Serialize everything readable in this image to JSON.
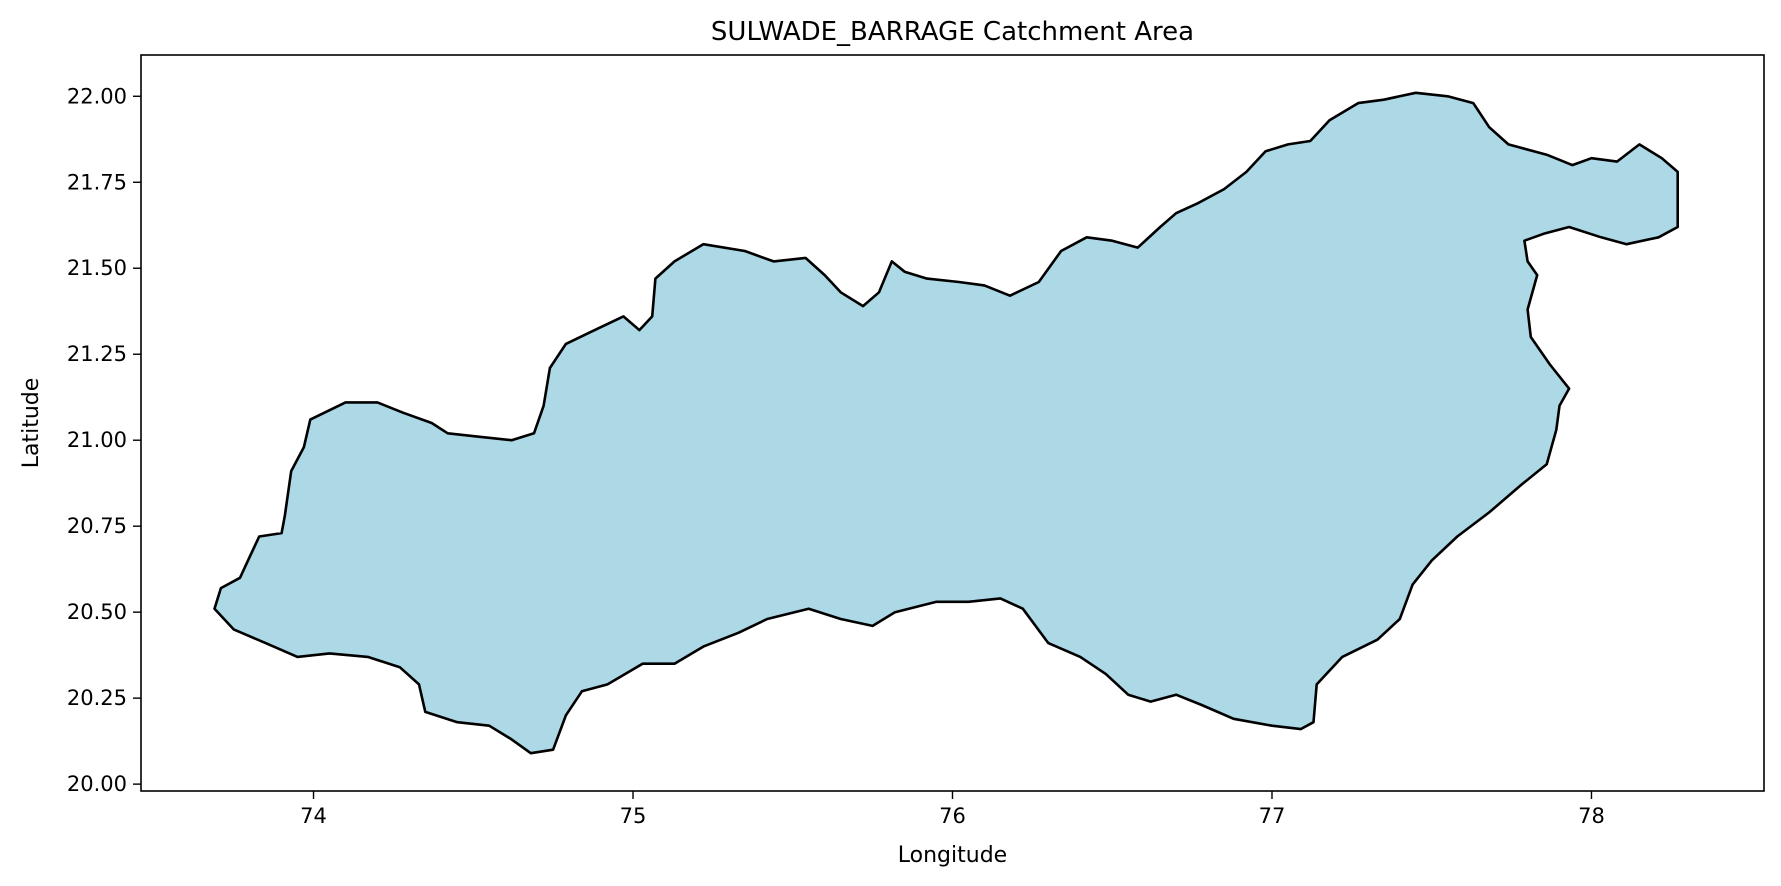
{
  "title": "SULWADE_BARRAGE Catchment Area",
  "xlabel": "Longitude",
  "ylabel": "Latitude",
  "map": {
    "xlim": [
      73.46,
      78.54
    ],
    "ylim": [
      19.98,
      22.12
    ],
    "x_ticks": [
      74,
      75,
      76,
      77,
      78
    ],
    "x_tick_labels": [
      "74",
      "75",
      "76",
      "77",
      "78"
    ],
    "y_ticks": [
      20.0,
      20.25,
      20.5,
      20.75,
      21.0,
      21.25,
      21.5,
      21.75,
      22.0
    ],
    "y_tick_labels": [
      "20.00",
      "20.25",
      "20.50",
      "20.75",
      "21.00",
      "21.25",
      "21.50",
      "21.75",
      "22.00"
    ],
    "fill_color": "#add8e6",
    "edge_color": "#000000",
    "boundary": [
      [
        73.69,
        20.51
      ],
      [
        73.75,
        20.45
      ],
      [
        73.85,
        20.41
      ],
      [
        73.95,
        20.37
      ],
      [
        74.05,
        20.38
      ],
      [
        74.17,
        20.37
      ],
      [
        74.27,
        20.34
      ],
      [
        74.33,
        20.29
      ],
      [
        74.35,
        20.21
      ],
      [
        74.45,
        20.18
      ],
      [
        74.55,
        20.17
      ],
      [
        74.62,
        20.13
      ],
      [
        74.68,
        20.09
      ],
      [
        74.75,
        20.1
      ],
      [
        74.79,
        20.2
      ],
      [
        74.84,
        20.27
      ],
      [
        74.92,
        20.29
      ],
      [
        75.03,
        20.35
      ],
      [
        75.13,
        20.35
      ],
      [
        75.22,
        20.4
      ],
      [
        75.33,
        20.44
      ],
      [
        75.42,
        20.48
      ],
      [
        75.55,
        20.51
      ],
      [
        75.65,
        20.48
      ],
      [
        75.75,
        20.46
      ],
      [
        75.82,
        20.5
      ],
      [
        75.95,
        20.53
      ],
      [
        76.05,
        20.53
      ],
      [
        76.15,
        20.54
      ],
      [
        76.22,
        20.51
      ],
      [
        76.3,
        20.41
      ],
      [
        76.4,
        20.37
      ],
      [
        76.48,
        20.32
      ],
      [
        76.55,
        20.26
      ],
      [
        76.62,
        20.24
      ],
      [
        76.7,
        20.26
      ],
      [
        76.78,
        20.23
      ],
      [
        76.88,
        20.19
      ],
      [
        77.0,
        20.17
      ],
      [
        77.09,
        20.16
      ],
      [
        77.13,
        20.18
      ],
      [
        77.14,
        20.29
      ],
      [
        77.22,
        20.37
      ],
      [
        77.33,
        20.42
      ],
      [
        77.4,
        20.48
      ],
      [
        77.44,
        20.58
      ],
      [
        77.5,
        20.65
      ],
      [
        77.58,
        20.72
      ],
      [
        77.68,
        20.79
      ],
      [
        77.78,
        20.87
      ],
      [
        77.86,
        20.93
      ],
      [
        77.89,
        21.03
      ],
      [
        77.9,
        21.1
      ],
      [
        77.93,
        21.15
      ],
      [
        77.87,
        21.22
      ],
      [
        77.81,
        21.3
      ],
      [
        77.8,
        21.38
      ],
      [
        77.83,
        21.48
      ],
      [
        77.8,
        21.52
      ],
      [
        77.79,
        21.58
      ],
      [
        77.85,
        21.6
      ],
      [
        77.93,
        21.62
      ],
      [
        78.03,
        21.59
      ],
      [
        78.11,
        21.57
      ],
      [
        78.21,
        21.59
      ],
      [
        78.27,
        21.62
      ],
      [
        78.27,
        21.71
      ],
      [
        78.27,
        21.78
      ],
      [
        78.22,
        21.82
      ],
      [
        78.15,
        21.86
      ],
      [
        78.08,
        21.81
      ],
      [
        78.0,
        21.82
      ],
      [
        77.94,
        21.8
      ],
      [
        77.86,
        21.83
      ],
      [
        77.74,
        21.86
      ],
      [
        77.68,
        21.91
      ],
      [
        77.63,
        21.98
      ],
      [
        77.55,
        22.0
      ],
      [
        77.45,
        22.01
      ],
      [
        77.35,
        21.99
      ],
      [
        77.27,
        21.98
      ],
      [
        77.18,
        21.93
      ],
      [
        77.12,
        21.87
      ],
      [
        77.05,
        21.86
      ],
      [
        76.98,
        21.84
      ],
      [
        76.92,
        21.78
      ],
      [
        76.85,
        21.73
      ],
      [
        76.77,
        21.69
      ],
      [
        76.7,
        21.66
      ],
      [
        76.65,
        21.62
      ],
      [
        76.58,
        21.56
      ],
      [
        76.5,
        21.58
      ],
      [
        76.42,
        21.59
      ],
      [
        76.34,
        21.55
      ],
      [
        76.27,
        21.46
      ],
      [
        76.18,
        21.42
      ],
      [
        76.1,
        21.45
      ],
      [
        76.02,
        21.46
      ],
      [
        75.92,
        21.47
      ],
      [
        75.85,
        21.49
      ],
      [
        75.81,
        21.52
      ],
      [
        75.77,
        21.43
      ],
      [
        75.72,
        21.39
      ],
      [
        75.65,
        21.43
      ],
      [
        75.6,
        21.48
      ],
      [
        75.54,
        21.53
      ],
      [
        75.44,
        21.52
      ],
      [
        75.35,
        21.55
      ],
      [
        75.22,
        21.57
      ],
      [
        75.13,
        21.52
      ],
      [
        75.07,
        21.47
      ],
      [
        75.06,
        21.36
      ],
      [
        75.02,
        21.32
      ],
      [
        74.97,
        21.36
      ],
      [
        74.88,
        21.32
      ],
      [
        74.79,
        21.28
      ],
      [
        74.74,
        21.21
      ],
      [
        74.72,
        21.1
      ],
      [
        74.69,
        21.02
      ],
      [
        74.62,
        21.0
      ],
      [
        74.52,
        21.01
      ],
      [
        74.42,
        21.02
      ],
      [
        74.37,
        21.05
      ],
      [
        74.28,
        21.08
      ],
      [
        74.2,
        21.11
      ],
      [
        74.1,
        21.11
      ],
      [
        73.99,
        21.06
      ],
      [
        73.97,
        20.98
      ],
      [
        73.93,
        20.91
      ],
      [
        73.91,
        20.78
      ],
      [
        73.9,
        20.73
      ],
      [
        73.83,
        20.72
      ],
      [
        73.8,
        20.66
      ],
      [
        73.77,
        20.6
      ],
      [
        73.71,
        20.57
      ],
      [
        73.69,
        20.51
      ]
    ]
  }
}
